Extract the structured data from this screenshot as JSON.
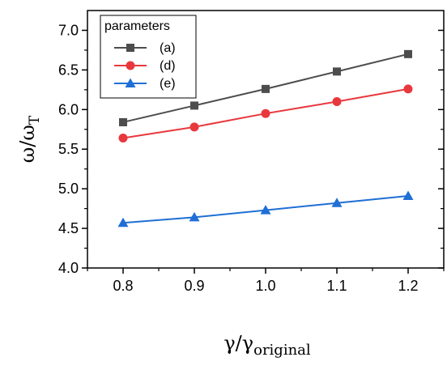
{
  "chart_data": {
    "type": "line",
    "x": [
      0.8,
      0.9,
      1.0,
      1.1,
      1.2
    ],
    "xlim": [
      0.75,
      1.25
    ],
    "ylim": [
      4.0,
      7.25
    ],
    "x_ticks": [
      "0.8",
      "0.9",
      "1.0",
      "1.1",
      "1.2"
    ],
    "y_ticks": [
      "4.0",
      "4.5",
      "5.0",
      "5.5",
      "6.0",
      "6.5",
      "7.0"
    ],
    "ylabel": {
      "main": "ω/ω",
      "sub": "T"
    },
    "xlabel": {
      "main": "γ/γ",
      "sub": "original"
    },
    "grid": false,
    "legend": {
      "title": "parameters",
      "position": "top-left"
    },
    "series": [
      {
        "name": "(a)",
        "marker": "square",
        "color": "#4d4d4d",
        "values": [
          5.84,
          6.05,
          6.26,
          6.48,
          6.7
        ]
      },
      {
        "name": "(d)",
        "marker": "circle",
        "color": "#e8383d",
        "values": [
          5.64,
          5.78,
          5.95,
          6.1,
          6.26
        ]
      },
      {
        "name": "(e)",
        "marker": "triangle",
        "color": "#1f6fd6",
        "values": [
          4.57,
          4.64,
          4.73,
          4.82,
          4.91
        ]
      }
    ]
  }
}
